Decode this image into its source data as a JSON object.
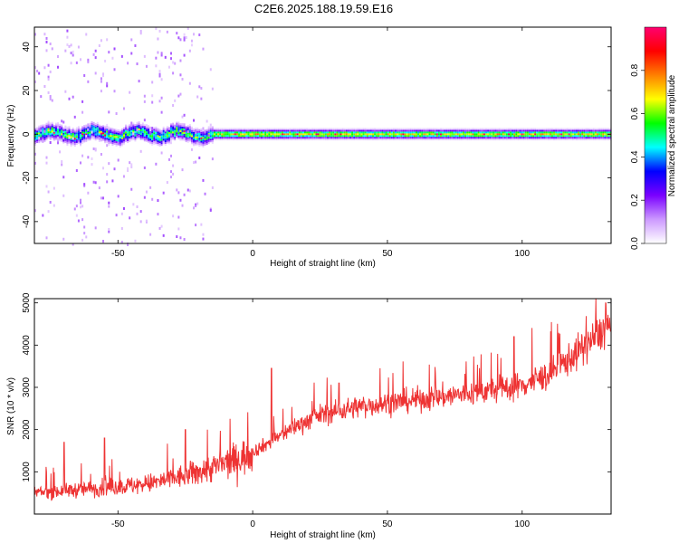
{
  "title": "C2E6.2025.188.19.59.E16",
  "chart_data": [
    {
      "type": "heatmap",
      "xlabel": "Height of straight line (km)",
      "ylabel": "Frequency (Hz)",
      "xlim": [
        -81,
        133
      ],
      "ylim": [
        -50,
        49
      ],
      "xticks": [
        -50,
        0,
        50,
        100
      ],
      "yticks": [
        -40,
        -20,
        0,
        20,
        40
      ],
      "colorbar": {
        "label": "Normalized spectral amplitude",
        "range": [
          0,
          1
        ],
        "ticks": [
          "0.0",
          "0.2",
          "0.4",
          "0.6",
          "0.8"
        ],
        "colors": [
          "#ffffff",
          "#cc99ff",
          "#7a00ff",
          "#0000ff",
          "#00ffff",
          "#00ff00",
          "#ffff00",
          "#ff8000",
          "#ff0000",
          "#ff0070"
        ]
      },
      "band": {
        "center_hz": 0,
        "note": "strong narrow band around 0 Hz across the full height range; broad noisy energy below about -15 km"
      },
      "grid": false
    },
    {
      "type": "line",
      "xlabel": "Height of straight line (km)",
      "ylabel": "SNR (10 * v/v)",
      "xlim": [
        -81,
        133
      ],
      "ylim": [
        0,
        5100
      ],
      "xticks": [
        -50,
        0,
        50,
        100
      ],
      "yticks": [
        1000,
        2000,
        3000,
        4000,
        5000
      ],
      "series": [
        {
          "color": "#ee3333",
          "trend_x": [
            -81,
            -60,
            -40,
            -25,
            -15,
            -5,
            5,
            15,
            25,
            40,
            60,
            80,
            100,
            110,
            120,
            133
          ],
          "trend_y": [
            500,
            600,
            700,
            900,
            1100,
            1300,
            1650,
            2050,
            2350,
            2550,
            2700,
            2850,
            3050,
            3300,
            3800,
            4500
          ],
          "spikes": [
            [
              -70,
              1700
            ],
            [
              -55,
              1800
            ],
            [
              -25,
              2000
            ],
            [
              7,
              3450
            ],
            [
              32,
              3100
            ],
            [
              97,
              4200
            ],
            [
              131,
              5000
            ]
          ]
        }
      ],
      "grid": false
    }
  ]
}
